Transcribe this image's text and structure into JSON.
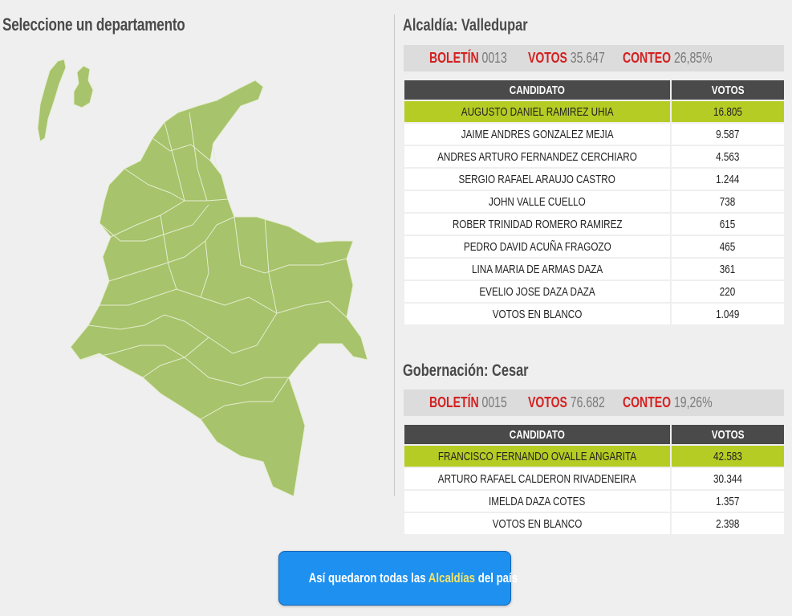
{
  "map_section": {
    "title": "Seleccione un departamento",
    "fill_color": "#a7c36b",
    "border_color": "#e4edd0"
  },
  "alcaldia": {
    "title": "Alcaldía: Valledupar",
    "boletin_label": "BOLETÍN",
    "boletin_value": "0013",
    "votos_label": "VOTOS",
    "votos_value": "35.647",
    "conteo_label": "CONTEO",
    "conteo_value": "26,85%",
    "headers": {
      "candidate": "CANDIDATO",
      "votes": "VOTOS"
    },
    "rows": [
      {
        "candidate": "AUGUSTO DANIEL RAMIREZ UHIA",
        "votes": "16.805"
      },
      {
        "candidate": "JAIME ANDRES GONZALEZ MEJIA",
        "votes": "9.587"
      },
      {
        "candidate": "ANDRES ARTURO FERNANDEZ CERCHIARO",
        "votes": "4.563"
      },
      {
        "candidate": "SERGIO RAFAEL ARAUJO CASTRO",
        "votes": "1.244"
      },
      {
        "candidate": "JOHN VALLE CUELLO",
        "votes": "738"
      },
      {
        "candidate": "ROBER TRINIDAD ROMERO RAMIREZ",
        "votes": "615"
      },
      {
        "candidate": "PEDRO DAVID ACUÑA FRAGOZO",
        "votes": "465"
      },
      {
        "candidate": "LINA MARIA DE ARMAS DAZA",
        "votes": "361"
      },
      {
        "candidate": "EVELIO JOSE DAZA DAZA",
        "votes": "220"
      },
      {
        "candidate": "VOTOS EN BLANCO",
        "votes": "1.049"
      }
    ]
  },
  "gobernacion": {
    "title": "Gobernación: Cesar",
    "boletin_label": "BOLETÍN",
    "boletin_value": "0015",
    "votos_label": "VOTOS",
    "votos_value": "76.682",
    "conteo_label": "CONTEO",
    "conteo_value": "19,26%",
    "headers": {
      "candidate": "CANDIDATO",
      "votes": "VOTOS"
    },
    "rows": [
      {
        "candidate": "FRANCISCO FERNANDO OVALLE ANGARITA",
        "votes": "42.583"
      },
      {
        "candidate": "ARTURO RAFAEL CALDERON RIVADENEIRA",
        "votes": "30.344"
      },
      {
        "candidate": "IMELDA DAZA COTES",
        "votes": "1.357"
      },
      {
        "candidate": "VOTOS EN BLANCO",
        "votes": "2.398"
      }
    ]
  },
  "cta": {
    "text_before": "Así quedaron todas las ",
    "highlight": "Alcaldías",
    "text_after": " del país"
  },
  "colors": {
    "accent_red": "#d42020",
    "winner_green": "#b5cc24",
    "header_dark": "#4a4a4a",
    "button_blue": "#1e90f0",
    "button_highlight": "#f2e36b"
  }
}
